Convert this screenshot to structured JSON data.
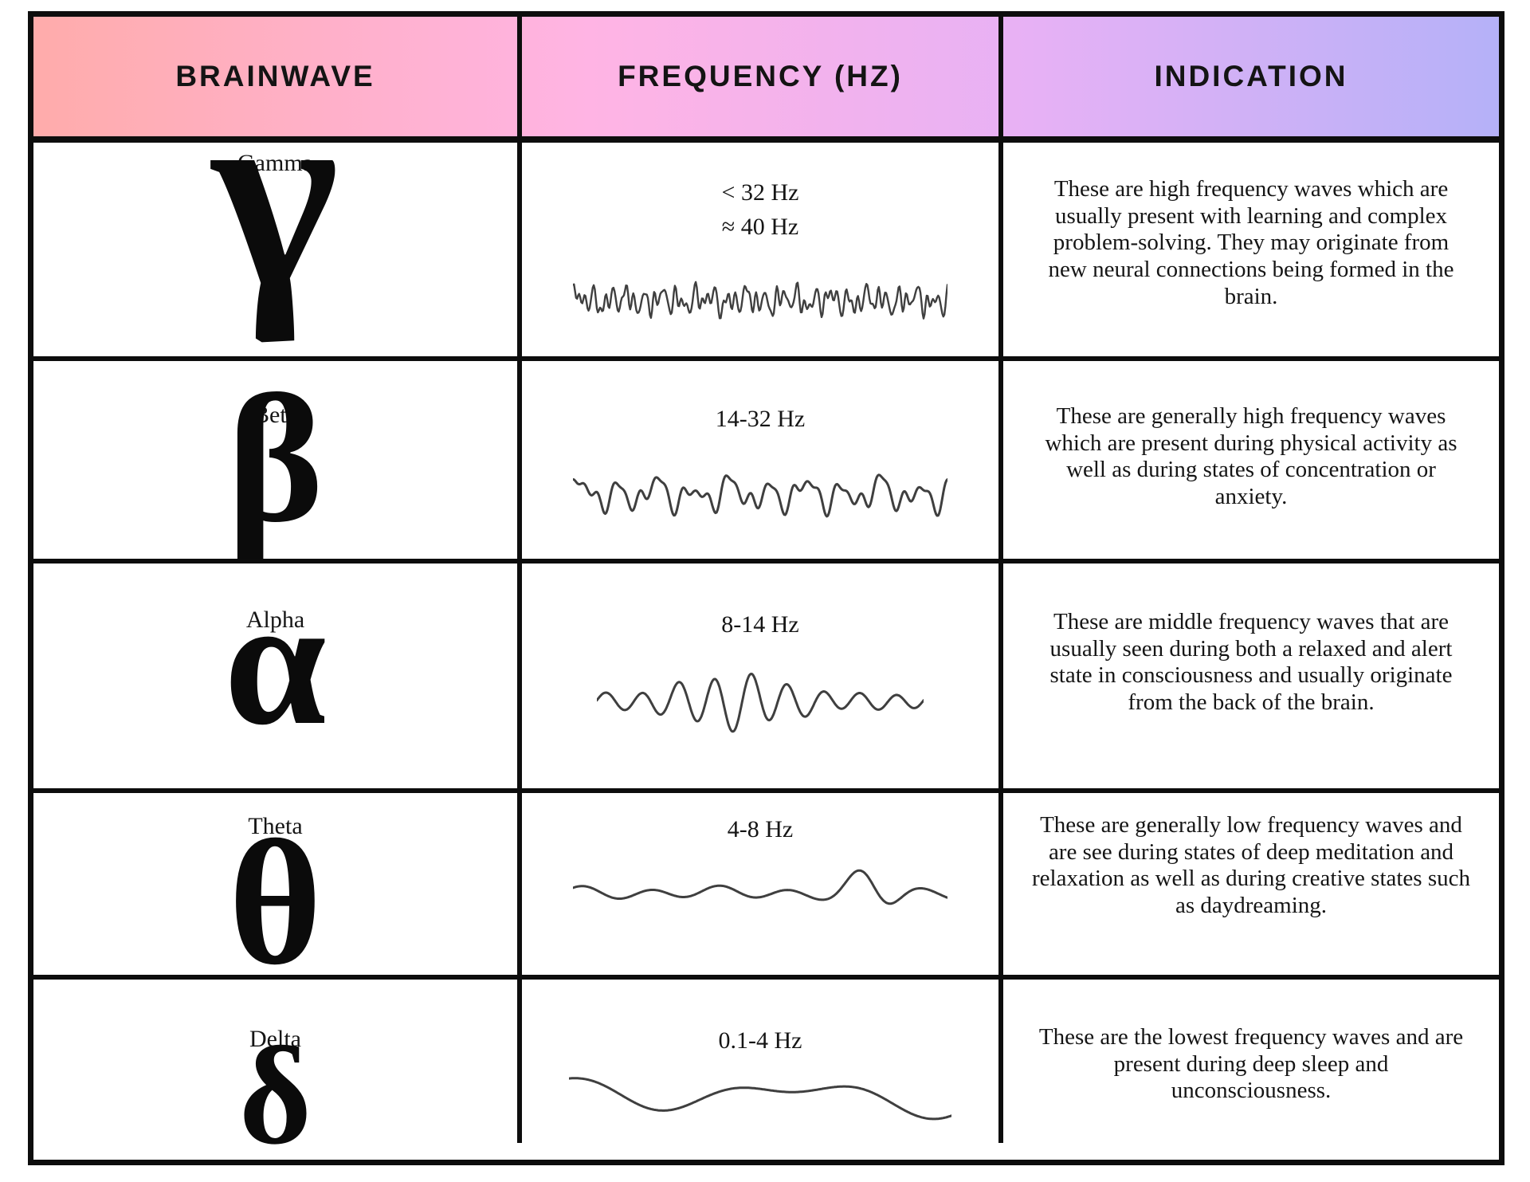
{
  "colors": {
    "border": "#0d0d0d",
    "header_gradient": [
      "#ffacab",
      "#ffb4e4",
      "#e7b1f5",
      "#b5b1f8"
    ],
    "wave_stroke": "#3f3f3f",
    "text": "#151515"
  },
  "table": {
    "columns": [
      "BRAINWAVE",
      "FREQUENCY (HZ)",
      "INDICATION"
    ],
    "rows": [
      {
        "name": "Gamma",
        "symbol": "γ",
        "frequency": [
          "< 32 Hz",
          "≈ 40 Hz"
        ],
        "indication": "These are high frequency waves which are usually present with learning and complex problem-solving. They may originate from new neural connections being formed in the brain.",
        "wave": {
          "label": "gamma-wave",
          "components": [
            {
              "f": 22,
              "a": 8,
              "p": 0.3
            },
            {
              "f": 37,
              "a": 9,
              "p": 1.1
            },
            {
              "f": 55,
              "a": 6,
              "p": 2.0
            },
            {
              "f": 70,
              "a": 3,
              "p": 0.7
            },
            {
              "f": 9,
              "a": 4,
              "p": 0.5
            }
          ]
        }
      },
      {
        "name": "Beta",
        "symbol": "β",
        "frequency": [
          "14-32 Hz"
        ],
        "indication": "These are generally high frequency waves which are present during physical activity as well as during states of concentration or anxiety.",
        "wave": {
          "label": "beta-wave",
          "components": [
            {
              "f": 10,
              "a": 13,
              "p": 0.2
            },
            {
              "f": 17,
              "a": 9,
              "p": 1.4
            },
            {
              "f": 27,
              "a": 6,
              "p": 2.6
            },
            {
              "f": 5,
              "a": 5,
              "p": 0.9
            }
          ]
        }
      },
      {
        "name": "Alpha",
        "symbol": "α",
        "frequency": [
          "8-14 Hz"
        ],
        "indication": "These are middle frequency waves that are usually seen during both a relaxed and alert state in consciousness and usually originate from the back of the brain.",
        "wave": {
          "label": "alpha-wave",
          "components": [
            {
              "f": 9,
              "a": 26,
              "p": 0.0
            },
            {
              "f": 4,
              "a": 4,
              "p": 1.2
            }
          ],
          "envelope": {
            "base": 0.35,
            "peak": 0.95,
            "center": 0.42,
            "width": 0.2
          }
        }
      },
      {
        "name": "Theta",
        "symbol": "θ",
        "frequency": [
          "4-8 Hz"
        ],
        "indication": "These are generally low frequency waves and are see during states of deep meditation and relaxation as well as during creative states such as daydreaming.",
        "wave": {
          "label": "theta-wave",
          "components": [
            {
              "f": 5.5,
              "a": 11,
              "p": 0.6
            },
            {
              "f": 2.5,
              "a": 5,
              "p": 1.8
            }
          ],
          "envelope": {
            "base": 0.55,
            "peak": 1.5,
            "center": 0.8,
            "width": 0.09
          }
        }
      },
      {
        "name": "Delta",
        "symbol": "δ",
        "frequency": [
          "0.1-4 Hz"
        ],
        "indication": "These are the lowest frequency waves and are present during deep sleep and unconsciousness.",
        "wave": {
          "label": "delta-wave",
          "components": [
            {
              "f": 1.4,
              "a": 16,
              "p": 2.4
            },
            {
              "f": 2.8,
              "a": 9,
              "p": 0.6
            },
            {
              "f": 0.7,
              "a": 6,
              "p": 1.0
            }
          ]
        }
      }
    ]
  }
}
